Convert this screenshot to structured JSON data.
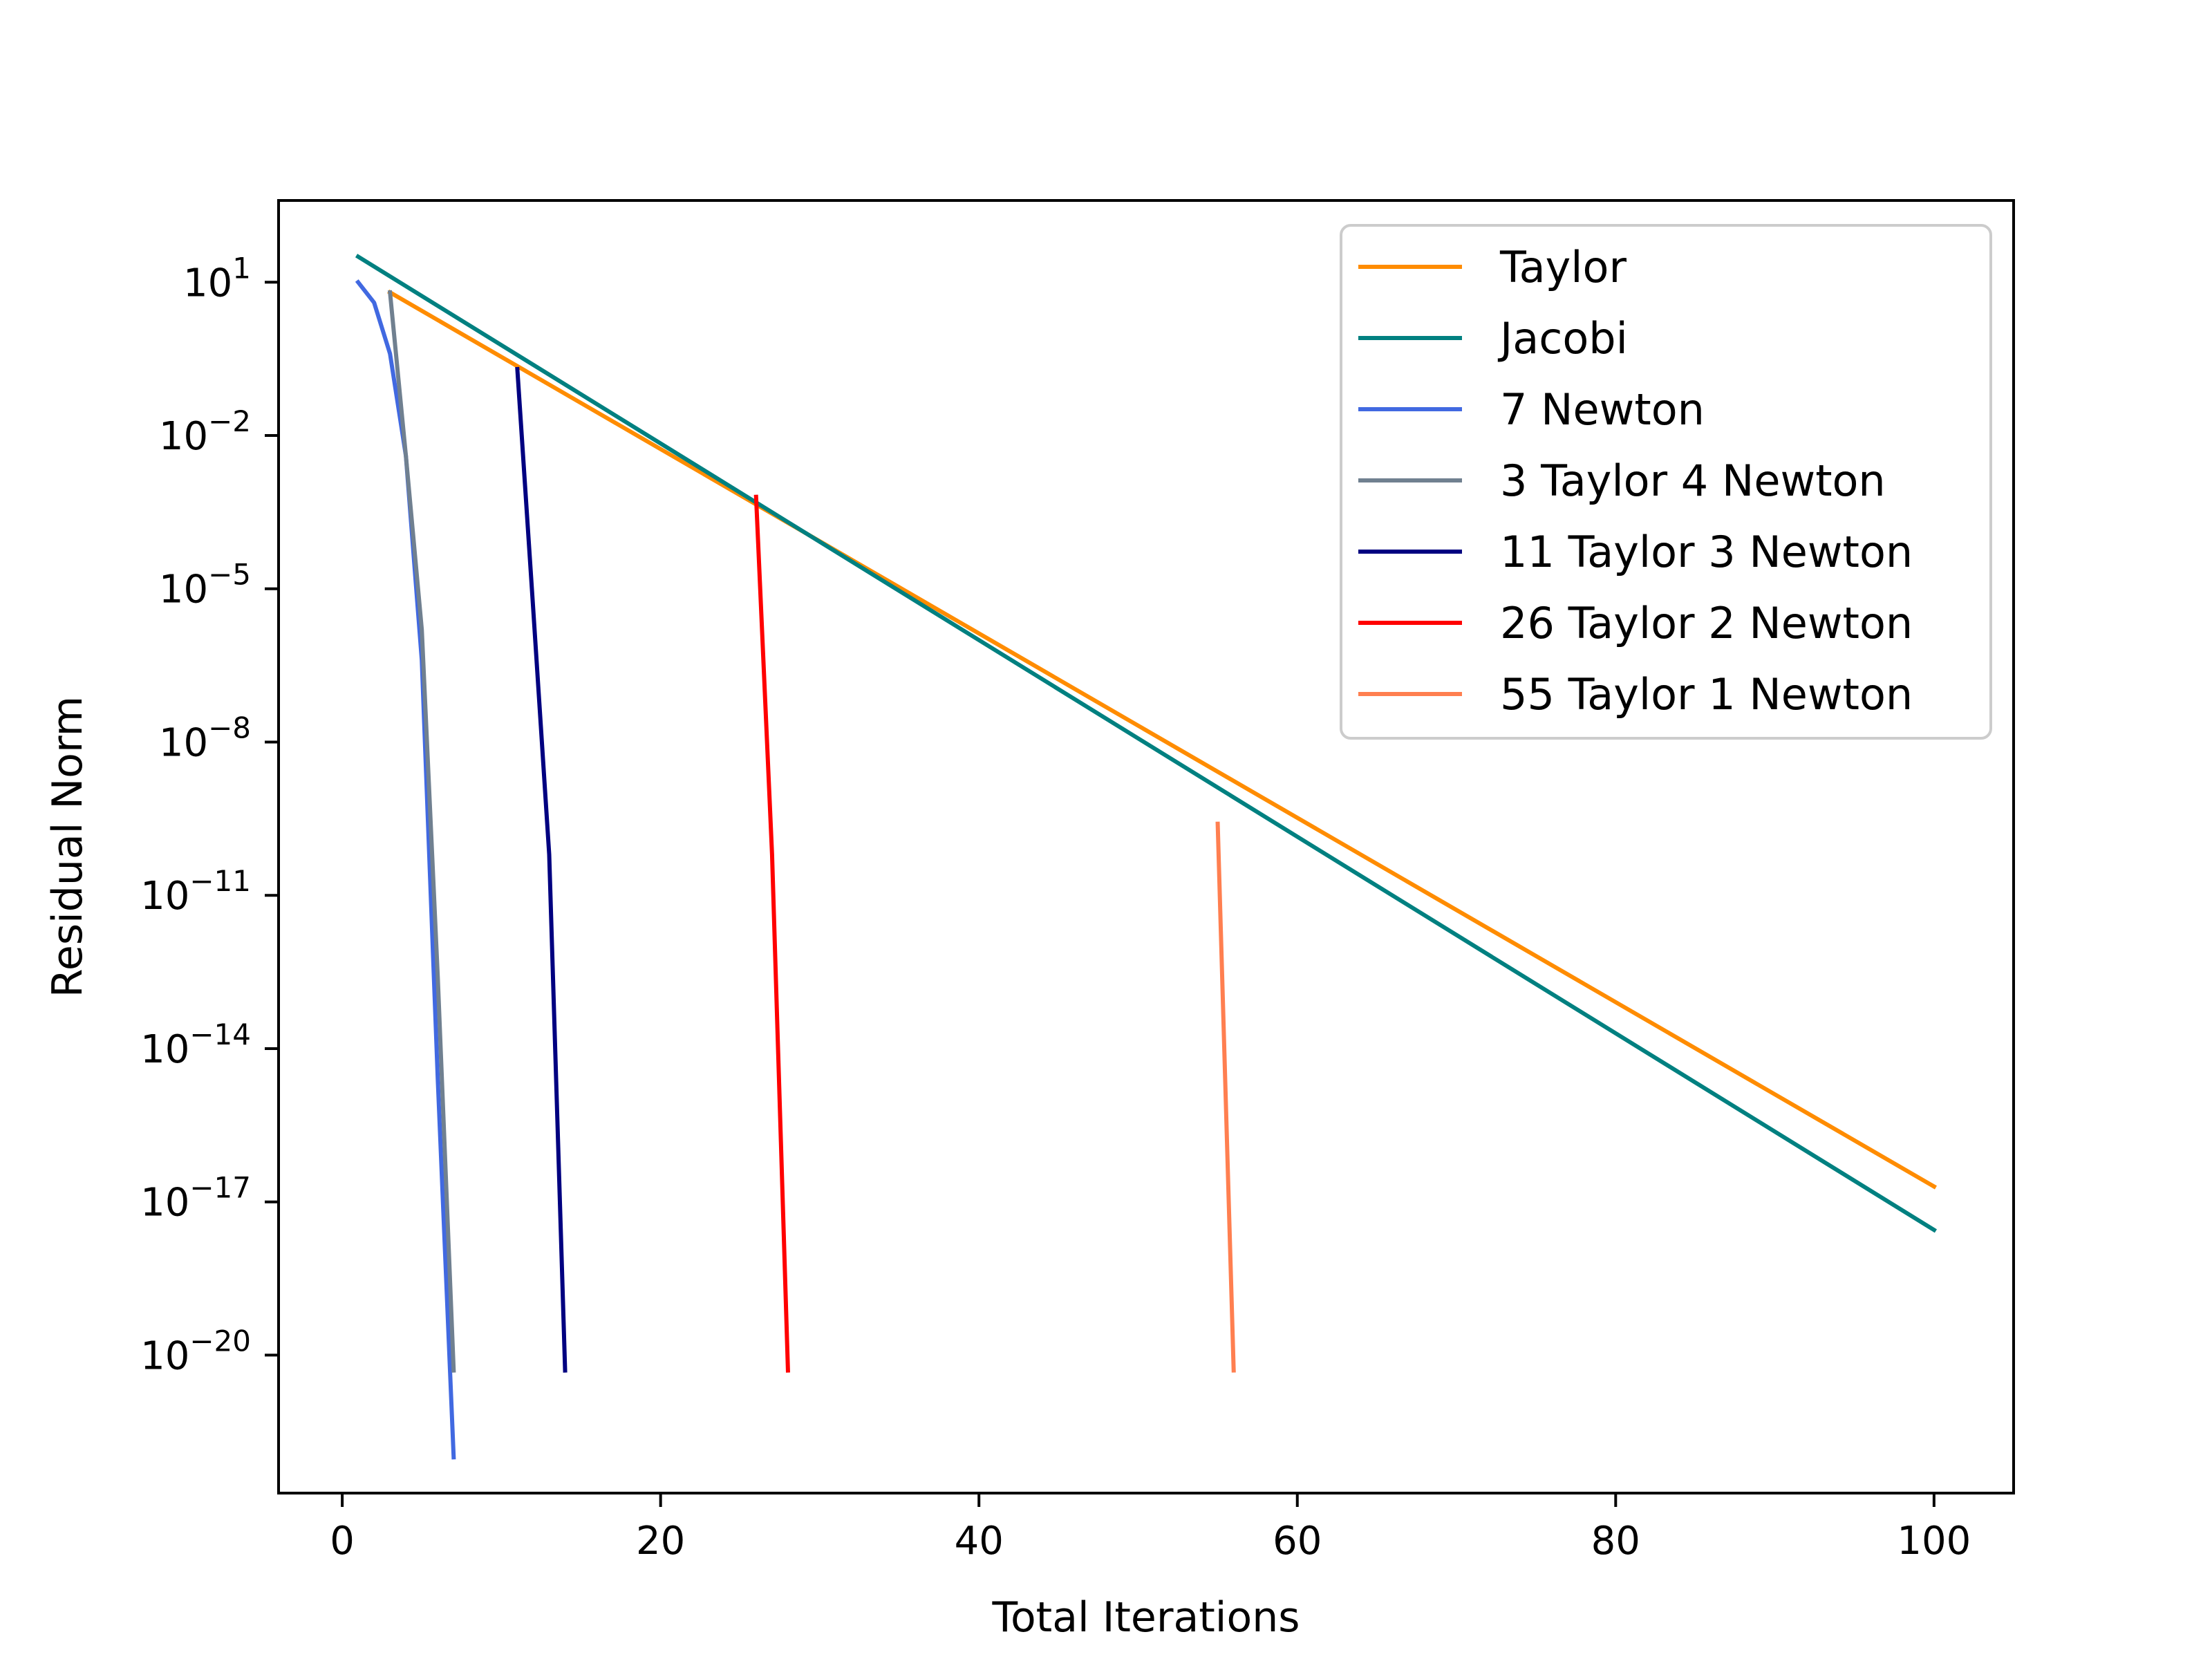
{
  "chart_data": {
    "type": "line",
    "title": "",
    "xlabel": "Total Iterations",
    "ylabel": "Residual Norm",
    "xlim": [
      -4,
      105
    ],
    "ylim_log10": [
      -22.7,
      2.6
    ],
    "yscale": "log",
    "grid": false,
    "legend_position": "top-right",
    "x_ticks": [
      0,
      20,
      40,
      60,
      80,
      100
    ],
    "x_tick_labels": [
      "0",
      "20",
      "40",
      "60",
      "80",
      "100"
    ],
    "y_ticks_log10": [
      1,
      -2,
      -5,
      -8,
      -11,
      -14,
      -17,
      -20
    ],
    "y_tick_exponents": [
      "1",
      "−2",
      "−5",
      "−8",
      "−11",
      "−14",
      "−17",
      "−20"
    ],
    "y_tick_base": "10",
    "series": [
      {
        "name": "Taylor",
        "color": "#FF8C00",
        "x": [
          3,
          100
        ],
        "y_log10": [
          0.8,
          -16.7
        ]
      },
      {
        "name": "Jacobi",
        "color": "#008080",
        "x": [
          1,
          100
        ],
        "y_log10": [
          1.5,
          -17.55
        ]
      },
      {
        "name": "7 Newton",
        "color": "#4169E1",
        "x": [
          1,
          2,
          3,
          4,
          5,
          6,
          7
        ],
        "y_log10": [
          1.0,
          0.6,
          -0.4,
          -2.4,
          -6.4,
          -14.6,
          -22.0
        ]
      },
      {
        "name": "3 Taylor 4 Newton",
        "color": "#708090",
        "x": [
          3,
          4,
          5,
          6,
          7
        ],
        "y_log10": [
          0.8,
          -2.4,
          -5.8,
          -12.6,
          -20.3
        ]
      },
      {
        "name": "11 Taylor 3 Newton",
        "color": "#000080",
        "x": [
          11,
          12,
          13,
          14
        ],
        "y_log10": [
          -0.7,
          -5.4,
          -10.2,
          -20.3
        ]
      },
      {
        "name": "26 Taylor 2 Newton",
        "color": "#FF0000",
        "x": [
          26,
          27,
          28
        ],
        "y_log10": [
          -3.2,
          -10.2,
          -20.3
        ]
      },
      {
        "name": "55 Taylor 1 Newton",
        "color": "#FF7F50",
        "x": [
          55,
          56
        ],
        "y_log10": [
          -9.6,
          -20.3
        ]
      }
    ]
  }
}
